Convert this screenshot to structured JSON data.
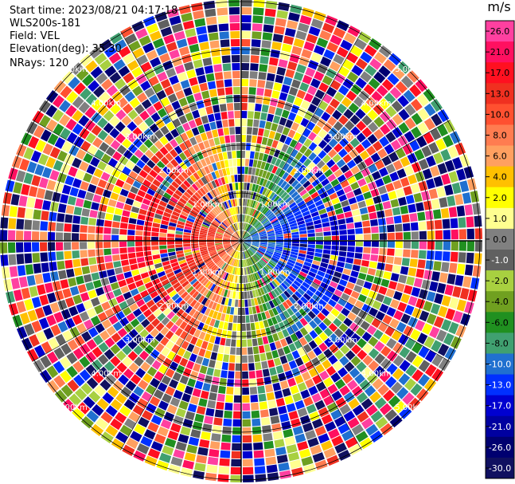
{
  "info": {
    "start_time": "Start time: 2023/08/21 04:17:18",
    "station": "WLS200s-181",
    "field": "Field: VEL",
    "elevation": "Elevation(deg): 35.30",
    "nrays": "NRays: 120"
  },
  "chart_data": {
    "type": "heatmap",
    "projection": "polar",
    "field": "VEL",
    "units": "m/s",
    "nrays": 120,
    "range_ring_labels": [
      "1.00km",
      "2.00km",
      "3.00km",
      "4.00km",
      "5.00km"
    ],
    "colorbar": {
      "title": "m/s",
      "ticks": [
        "26.0",
        "21.0",
        "17.0",
        "13.0",
        "10.0",
        "8.0",
        "6.0",
        "4.0",
        "2.0",
        "1.0",
        "0.0",
        "-1.0",
        "-2.0",
        "-4.0",
        "-6.0",
        "-8.0",
        "-10.0",
        "-13.0",
        "-17.0",
        "-21.0",
        "-26.0",
        "-30.0"
      ],
      "colors": [
        "#ff40a0",
        "#ff1060",
        "#ff1020",
        "#f03020",
        "#ff5030",
        "#ff7c50",
        "#ffa060",
        "#ffc000",
        "#ffff00",
        "#ffff90",
        "#808080",
        "#606060",
        "#a8d040",
        "#70a020",
        "#209020",
        "#40a070",
        "#2070d0",
        "#0030ff",
        "#0000d0",
        "#0000a0",
        "#000070",
        "#101060"
      ]
    }
  }
}
